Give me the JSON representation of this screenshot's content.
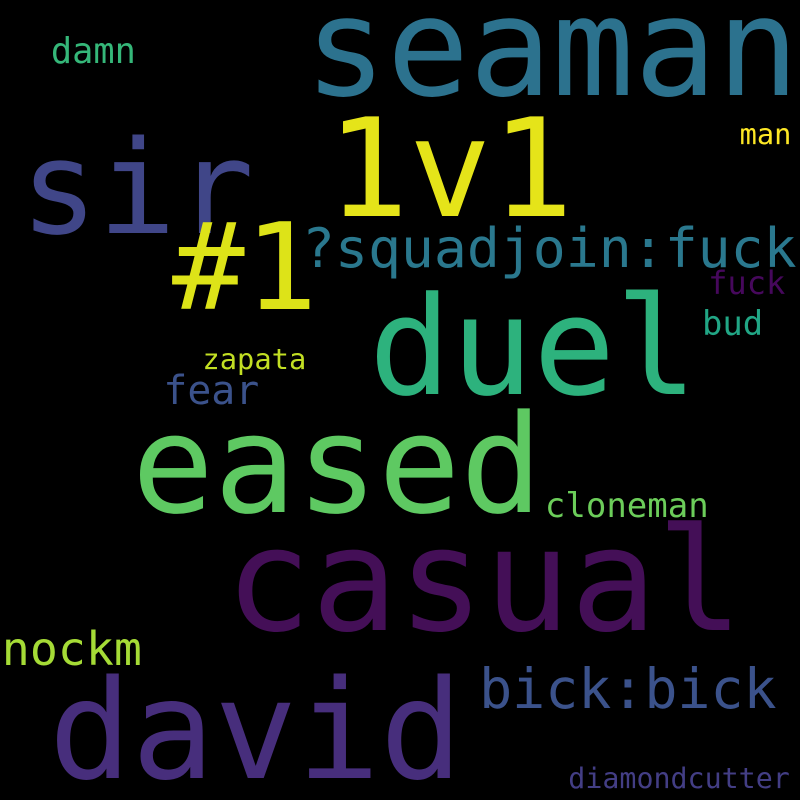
{
  "words": [
    {
      "text": "seaman",
      "color": "#2c728e"
    },
    {
      "text": "1v1",
      "color": "#e5e419"
    },
    {
      "text": "sir",
      "color": "#404688"
    },
    {
      "text": "#1",
      "color": "#dde318"
    },
    {
      "text": "duel",
      "color": "#2db27d"
    },
    {
      "text": "?squadjoin:fuck",
      "color": "#2a788e"
    },
    {
      "text": "eased",
      "color": "#5ec962"
    },
    {
      "text": "casual",
      "color": "#440f57"
    },
    {
      "text": "david",
      "color": "#472e7c"
    },
    {
      "text": "bick:bick",
      "color": "#3b528b"
    },
    {
      "text": "nockm",
      "color": "#a5db36"
    },
    {
      "text": "damn",
      "color": "#35b779"
    },
    {
      "text": "man",
      "color": "#fde725"
    },
    {
      "text": "fuck",
      "color": "#46085c"
    },
    {
      "text": "bud",
      "color": "#21a685"
    },
    {
      "text": "zapata",
      "color": "#c2df23"
    },
    {
      "text": "fear",
      "color": "#3b528b"
    },
    {
      "text": "cloneman",
      "color": "#6ccd5a"
    },
    {
      "text": "diamondcutter",
      "color": "#433e85"
    }
  ]
}
